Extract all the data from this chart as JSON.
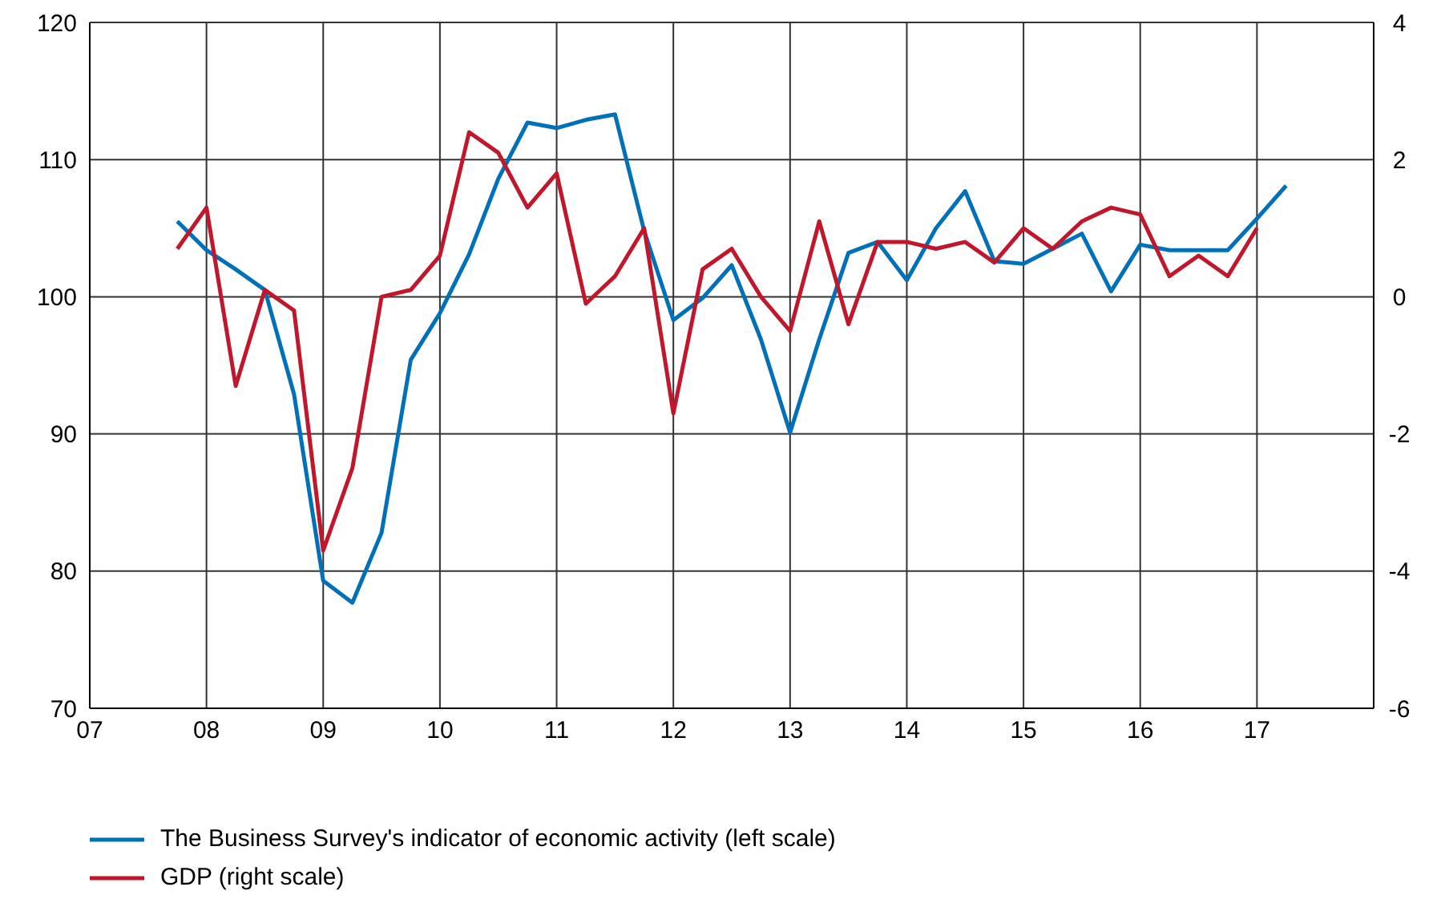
{
  "chart_data": {
    "type": "line",
    "x": [
      7.75,
      8,
      8.25,
      8.5,
      8.75,
      9,
      9.25,
      9.5,
      9.75,
      10,
      10.25,
      10.5,
      10.75,
      11,
      11.25,
      11.5,
      11.75,
      12,
      12.25,
      12.5,
      12.75,
      13,
      13.25,
      13.5,
      13.75,
      14,
      14.25,
      14.5,
      14.75,
      15,
      15.25,
      15.5,
      15.75,
      16,
      16.25,
      16.5,
      16.75,
      17,
      17.25
    ],
    "series": [
      {
        "name": "The Business Survey's indicator of economic activity (left scale)",
        "color": "#0071b9",
        "values": [
          105.5,
          103.4,
          102.0,
          100.5,
          92.9,
          79.3,
          77.7,
          82.8,
          95.4,
          98.8,
          103.1,
          108.6,
          112.7,
          112.3,
          112.9,
          113.3,
          104.8,
          98.3,
          99.9,
          102.3,
          96.9,
          90.1,
          96.9,
          103.2,
          104.0,
          101.2,
          105.0,
          107.7,
          102.6,
          102.4,
          103.5,
          104.6,
          100.4,
          103.8,
          103.4,
          103.4,
          103.4,
          105.7,
          108.1
        ]
      },
      {
        "name": "GDP (right scale)",
        "color": "#c0172d",
        "axis": "y2",
        "values": [
          0.7,
          1.3,
          -1.3,
          0.1,
          -0.2,
          -3.7,
          -2.5,
          0.0,
          0.1,
          0.6,
          2.4,
          2.1,
          1.3,
          1.8,
          -0.1,
          0.3,
          1.0,
          -1.7,
          0.4,
          0.7,
          0.0,
          -0.5,
          1.1,
          -0.4,
          0.8,
          0.8,
          0.7,
          0.8,
          0.5,
          1.0,
          0.7,
          1.1,
          1.3,
          1.2,
          0.3,
          0.6,
          0.3,
          1.0,
          null
        ]
      }
    ],
    "xlim": [
      7,
      18
    ],
    "xticks": [
      {
        "value": 7,
        "label": "07"
      },
      {
        "value": 8,
        "label": "08"
      },
      {
        "value": 9,
        "label": "09"
      },
      10,
      11,
      12,
      13,
      14,
      15,
      16,
      17
    ],
    "ylim": [
      70,
      120
    ],
    "yticks": [
      70,
      80,
      90,
      100,
      110,
      120
    ],
    "y2lim": [
      -6,
      4
    ],
    "y2ticks": [
      -6,
      -4,
      -2,
      0,
      2,
      4
    ],
    "grid": true,
    "legend": "bottom",
    "marker": "none",
    "line_style": "solid"
  }
}
